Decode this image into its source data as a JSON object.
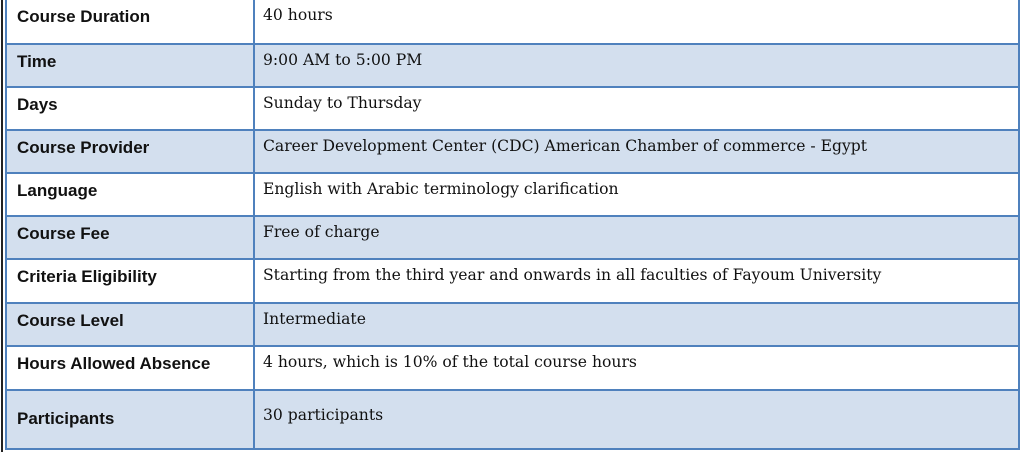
{
  "colors": {
    "border": "#4f81bd",
    "band": "#d3dfee"
  },
  "rows": [
    {
      "label": "Course Duration",
      "value": "40 hours"
    },
    {
      "label": "Time",
      "value": "9:00 AM to 5:00 PM"
    },
    {
      "label": "Days",
      "value": "Sunday to Thursday"
    },
    {
      "label": "Course Provider",
      "value": "Career Development Center (CDC) American Chamber of commerce - Egypt"
    },
    {
      "label": "Language",
      "value": "English with Arabic terminology clarification"
    },
    {
      "label": "Course Fee",
      "value": "Free of charge"
    },
    {
      "label": "Criteria Eligibility",
      "value": "Starting from the third year and onwards in all faculties of Fayoum University"
    },
    {
      "label": "Course Level",
      "value": "Intermediate"
    },
    {
      "label": "Hours Allowed Absence",
      "value": "4 hours, which is 10% of the total course hours"
    },
    {
      "label": "Participants",
      "value": "30 participants"
    }
  ]
}
